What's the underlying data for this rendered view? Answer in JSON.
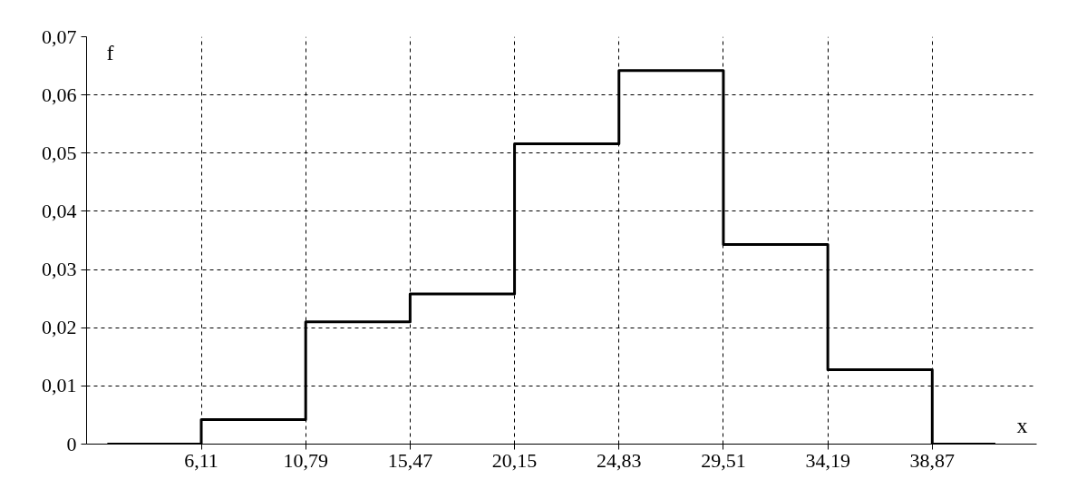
{
  "chart_data": {
    "type": "step",
    "xlabel": "x",
    "ylabel": "f",
    "x": [
      1.9,
      6.11,
      10.79,
      15.47,
      20.15,
      24.83,
      29.51,
      34.19,
      38.87,
      41.7
    ],
    "values": [
      0,
      0.0042,
      0.021,
      0.0258,
      0.0516,
      0.0642,
      0.0343,
      0.0128,
      0,
      0
    ],
    "color": "#000000",
    "xlim": [
      0.97,
      43.55
    ],
    "ylim": [
      0,
      0.07
    ],
    "xticks": [
      {
        "value": 6.11,
        "label": "6,11"
      },
      {
        "value": 10.79,
        "label": "10,79"
      },
      {
        "value": 15.47,
        "label": "15,47"
      },
      {
        "value": 20.15,
        "label": "20,15"
      },
      {
        "value": 24.83,
        "label": "24,83"
      },
      {
        "value": 29.51,
        "label": "29,51"
      },
      {
        "value": 34.19,
        "label": "34,19"
      },
      {
        "value": 38.87,
        "label": "38,87"
      }
    ],
    "yticks": [
      0,
      {
        "value": 0.01,
        "label": "0,01"
      },
      {
        "value": 0.02,
        "label": "0,02"
      },
      {
        "value": 0.03,
        "label": "0,03"
      },
      {
        "value": 0.04,
        "label": "0,04"
      },
      {
        "value": 0.05,
        "label": "0,05"
      },
      {
        "value": 0.06,
        "label": "0,06"
      },
      {
        "value": 0.07,
        "label": "0,07"
      }
    ],
    "grid": true,
    "line_style": "solid",
    "marker": "none"
  }
}
